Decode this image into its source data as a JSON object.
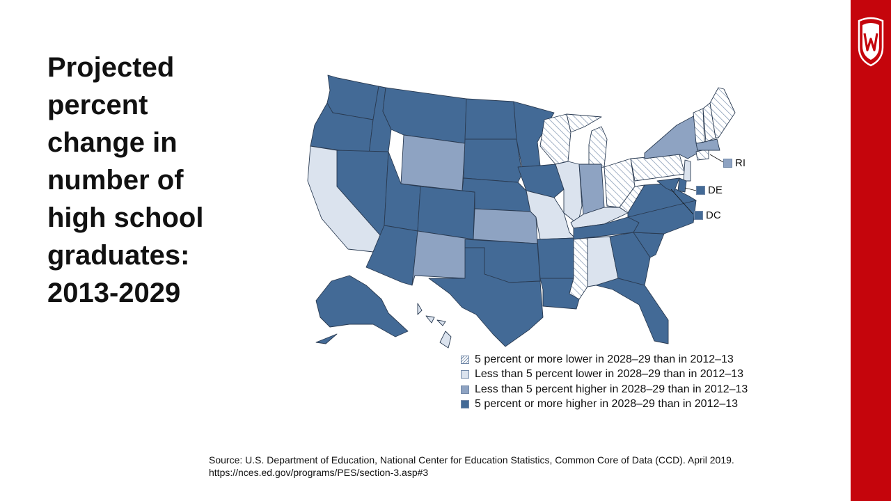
{
  "slide": {
    "title": "Projected\npercent\nchange in\nnumber of\nhigh school\ngraduates:\n2013-2029",
    "source_line1": "Source: U.S. Department of Education, National Center for Education Statistics, Common Core of Data (CCD). April 2019.",
    "source_line2": "https://nces.ed.gov/programs/PES/section-3.asp#3"
  },
  "colors": {
    "accent_red": "#c5050c",
    "high5": "#436a96",
    "high_lt5": "#8ea3c2",
    "low_lt5": "#dbe3ee",
    "low5_hatch": "#7a90ad",
    "border": "#2a3b52"
  },
  "legend": [
    {
      "key": "low5",
      "label": "5 percent or more lower in 2028–29 than in 2012–13"
    },
    {
      "key": "low_lt5",
      "label": "Less than 5 percent lower in 2028–29 than in 2012–13"
    },
    {
      "key": "high_lt5",
      "label": "Less than 5 percent higher in 2028–29 than in 2012–13"
    },
    {
      "key": "high5",
      "label": "5 percent or more higher in 2028–29 than in 2012–13"
    }
  ],
  "callouts": [
    {
      "label": "RI",
      "key": "high_lt5"
    },
    {
      "label": "DE",
      "key": "high5"
    },
    {
      "label": "DC",
      "key": "high5"
    }
  ],
  "states": {
    "WA": "high5",
    "OR": "high5",
    "ID": "high5",
    "MT": "high5",
    "WY": "high_lt5",
    "NV": "high5",
    "CA": "low_lt5",
    "UT": "high5",
    "AZ": "high5",
    "CO": "high5",
    "NM": "high_lt5",
    "ND": "high5",
    "SD": "high5",
    "NE": "high5",
    "KS": "high_lt5",
    "OK": "high5",
    "TX": "high5",
    "MN": "high5",
    "IA": "high5",
    "MO": "low_lt5",
    "AR": "high5",
    "LA": "high5",
    "WI": "low5",
    "IL": "low_lt5",
    "MI": "low5",
    "IN": "high_lt5",
    "OH": "low5",
    "KY": "low_lt5",
    "TN": "high5",
    "MS": "low5",
    "AL": "low_lt5",
    "GA": "high5",
    "FL": "high5",
    "SC": "high5",
    "NC": "high5",
    "VA": "high5",
    "WV": "low5",
    "PA": "low5",
    "NY": "high_lt5",
    "NJ": "low_lt5",
    "MD": "high5",
    "DE": "high5",
    "CT": "low5",
    "MA": "high_lt5",
    "VT": "low5",
    "NH": "low5",
    "ME": "low5",
    "AK": "high5",
    "HI": "low_lt5"
  }
}
